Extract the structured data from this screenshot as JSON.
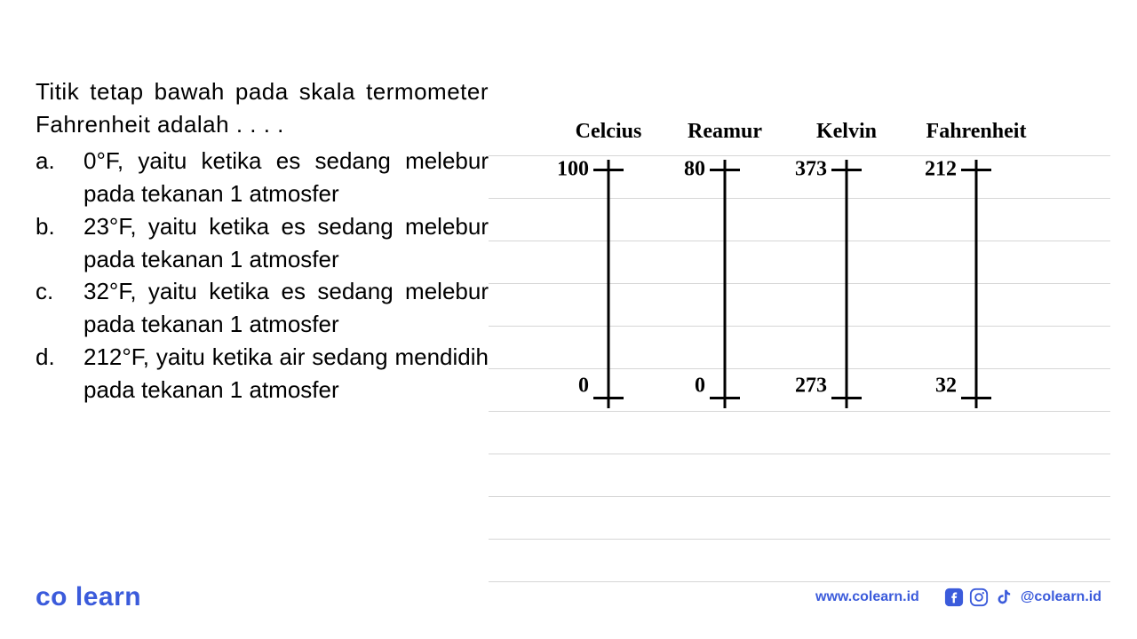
{
  "question": {
    "prompt": "Titik tetap bawah pada skala termometer Fahrenheit adalah . . . .",
    "options": [
      {
        "label": "a.",
        "text": "0°F, yaitu ketika es sedang melebur pada tekanan 1 atmosfer"
      },
      {
        "label": "b.",
        "text": "23°F, yaitu ketika es sedang melebur pada tekanan 1 atmosfer"
      },
      {
        "label": "c.",
        "text": "32°F, yaitu ketika es sedang melebur pada tekanan 1 atmosfer"
      },
      {
        "label": "d.",
        "text": "212°F, yaitu ketika air sedang mendidih pada tekanan 1 atmosfer"
      }
    ]
  },
  "diagram": {
    "type": "infographic",
    "line_color": "#000000",
    "line_width": 3,
    "tick_width": 34,
    "title_fontsize": 24,
    "label_fontsize": 24,
    "title_font": "Times New Roman",
    "label_font": "Times New Roman",
    "background_color": "#ffffff",
    "notebook_line_color": "#d6d6d6",
    "notebook_line_spacing": 48,
    "notebook_line_count": 11,
    "scale_body_height": 280,
    "scales": [
      {
        "title": "Celcius",
        "top": "100",
        "bottom": "0"
      },
      {
        "title": "Reamur",
        "top": "80",
        "bottom": "0"
      },
      {
        "title": "Kelvin",
        "top": "373",
        "bottom": "273"
      },
      {
        "title": "Fahrenheit",
        "top": "212",
        "bottom": "32"
      }
    ]
  },
  "footer": {
    "logo_co": "co",
    "logo_learn": "learn",
    "url": "www.colearn.id",
    "handle": "@colearn.id",
    "brand_color": "#3b5bdb"
  }
}
